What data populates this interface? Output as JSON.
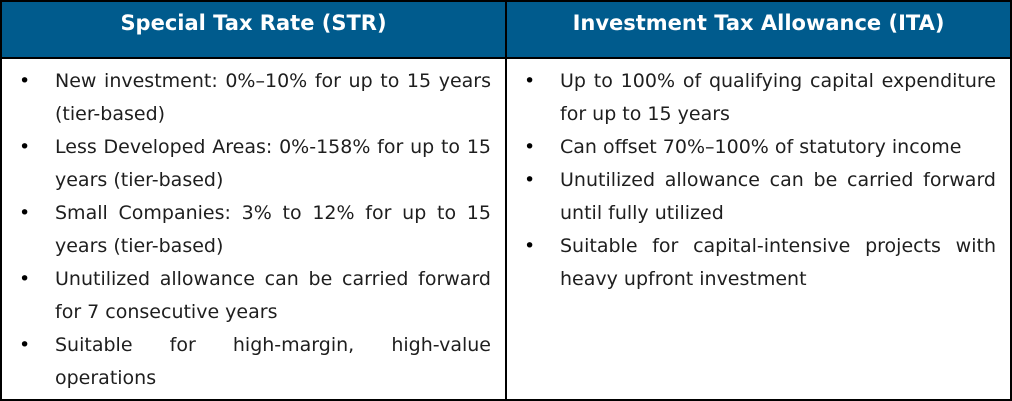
{
  "table": {
    "colors": {
      "header_bg": "#005B8D",
      "header_text": "#FFFFFF",
      "body_text": "#1E1E1E",
      "border": "#000000"
    },
    "columns": [
      {
        "header": "Special Tax Rate (STR)",
        "bullets": [
          "New investment: 0%–10% for up to 15 years (tier-based)",
          "Less Developed Areas: 0%-158% for up to 15 years (tier-based)",
          "Small Companies: 3% to 12% for up to 15 years (tier-based)",
          "Unutilized allowance can be carried forward for 7 consecutive years",
          "Suitable for high-margin, high-value operations"
        ]
      },
      {
        "header": "Investment Tax Allowance (ITA)",
        "bullets": [
          "Up to 100% of qualifying capital expenditure for up to 15 years",
          "Can offset 70%–100% of statutory income",
          "Unutilized allowance can be carried forward until fully utilized",
          "Suitable for capital-intensive projects with heavy upfront investment"
        ]
      }
    ]
  }
}
